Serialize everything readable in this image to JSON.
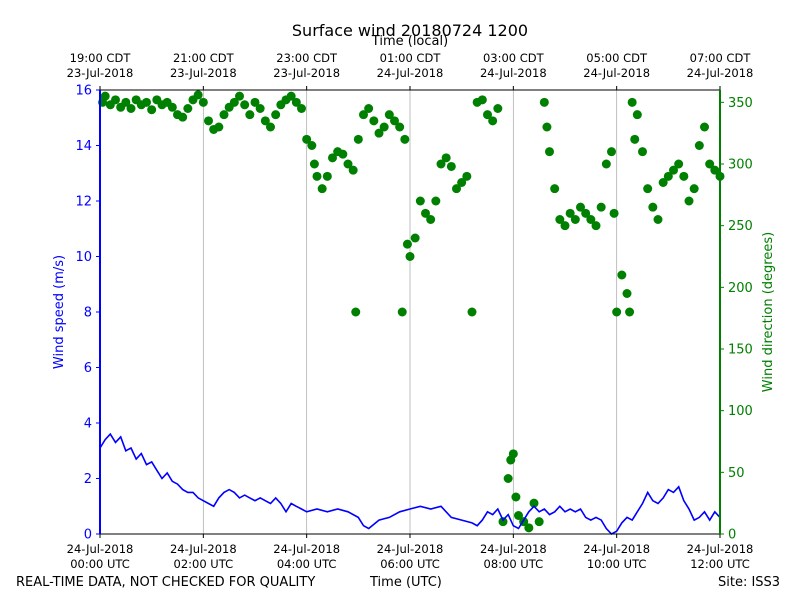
{
  "chart_data": {
    "type": "line",
    "title": "Surface wind 20180724 1200",
    "top_axis_label": "Time (local)",
    "xlabel": "Time (UTC)",
    "ylabel_left": "Wind speed (m/s)",
    "ylabel_right": "Wind direction (degrees)",
    "ylim_left": [
      0,
      16
    ],
    "ylim_right": [
      0,
      360
    ],
    "yticks_left": [
      0,
      2,
      4,
      6,
      8,
      10,
      12,
      14,
      16
    ],
    "yticks_right": [
      0,
      50,
      100,
      150,
      200,
      250,
      300,
      350
    ],
    "xlim_hours_utc": [
      0,
      12
    ],
    "grid": "vertical at every 2 h",
    "bottom_ticks": [
      {
        "hour": 0,
        "line1": "24-Jul-2018",
        "line2": "00:00 UTC"
      },
      {
        "hour": 2,
        "line1": "24-Jul-2018",
        "line2": "02:00 UTC"
      },
      {
        "hour": 4,
        "line1": "24-Jul-2018",
        "line2": "04:00 UTC"
      },
      {
        "hour": 6,
        "line1": "24-Jul-2018",
        "line2": "06:00 UTC"
      },
      {
        "hour": 8,
        "line1": "24-Jul-2018",
        "line2": "08:00 UTC"
      },
      {
        "hour": 10,
        "line1": "24-Jul-2018",
        "line2": "10:00 UTC"
      },
      {
        "hour": 12,
        "line1": "24-Jul-2018",
        "line2": "12:00 UTC"
      }
    ],
    "top_ticks": [
      {
        "hour": 0,
        "line1": "19:00 CDT",
        "line2": "23-Jul-2018"
      },
      {
        "hour": 2,
        "line1": "21:00 CDT",
        "line2": "23-Jul-2018"
      },
      {
        "hour": 4,
        "line1": "23:00 CDT",
        "line2": "23-Jul-2018"
      },
      {
        "hour": 6,
        "line1": "01:00 CDT",
        "line2": "24-Jul-2018"
      },
      {
        "hour": 8,
        "line1": "03:00 CDT",
        "line2": "24-Jul-2018"
      },
      {
        "hour": 10,
        "line1": "05:00 CDT",
        "line2": "24-Jul-2018"
      },
      {
        "hour": 12,
        "line1": "07:00 CDT",
        "line2": "24-Jul-2018"
      }
    ],
    "series": [
      {
        "name": "Wind speed (m/s)",
        "axis": "left",
        "style": "line",
        "color": "#0000ff",
        "points": [
          [
            0.0,
            3.1
          ],
          [
            0.1,
            3.4
          ],
          [
            0.2,
            3.6
          ],
          [
            0.3,
            3.3
          ],
          [
            0.4,
            3.5
          ],
          [
            0.5,
            3.0
          ],
          [
            0.6,
            3.1
          ],
          [
            0.7,
            2.7
          ],
          [
            0.8,
            2.9
          ],
          [
            0.9,
            2.5
          ],
          [
            1.0,
            2.6
          ],
          [
            1.1,
            2.3
          ],
          [
            1.2,
            2.0
          ],
          [
            1.3,
            2.2
          ],
          [
            1.4,
            1.9
          ],
          [
            1.5,
            1.8
          ],
          [
            1.6,
            1.6
          ],
          [
            1.7,
            1.5
          ],
          [
            1.8,
            1.5
          ],
          [
            1.9,
            1.3
          ],
          [
            2.0,
            1.2
          ],
          [
            2.1,
            1.1
          ],
          [
            2.2,
            1.0
          ],
          [
            2.3,
            1.3
          ],
          [
            2.4,
            1.5
          ],
          [
            2.5,
            1.6
          ],
          [
            2.6,
            1.5
          ],
          [
            2.7,
            1.3
          ],
          [
            2.8,
            1.4
          ],
          [
            2.9,
            1.3
          ],
          [
            3.0,
            1.2
          ],
          [
            3.1,
            1.3
          ],
          [
            3.2,
            1.2
          ],
          [
            3.3,
            1.1
          ],
          [
            3.4,
            1.3
          ],
          [
            3.5,
            1.1
          ],
          [
            3.6,
            0.8
          ],
          [
            3.7,
            1.1
          ],
          [
            3.8,
            1.0
          ],
          [
            3.9,
            0.9
          ],
          [
            4.0,
            0.8
          ],
          [
            4.2,
            0.9
          ],
          [
            4.4,
            0.8
          ],
          [
            4.6,
            0.9
          ],
          [
            4.8,
            0.8
          ],
          [
            5.0,
            0.6
          ],
          [
            5.1,
            0.3
          ],
          [
            5.2,
            0.2
          ],
          [
            5.4,
            0.5
          ],
          [
            5.6,
            0.6
          ],
          [
            5.8,
            0.8
          ],
          [
            6.0,
            0.9
          ],
          [
            6.2,
            1.0
          ],
          [
            6.4,
            0.9
          ],
          [
            6.6,
            1.0
          ],
          [
            6.8,
            0.6
          ],
          [
            7.0,
            0.5
          ],
          [
            7.2,
            0.4
          ],
          [
            7.3,
            0.3
          ],
          [
            7.4,
            0.5
          ],
          [
            7.5,
            0.8
          ],
          [
            7.6,
            0.7
          ],
          [
            7.7,
            0.9
          ],
          [
            7.8,
            0.5
          ],
          [
            7.9,
            0.7
          ],
          [
            8.0,
            0.3
          ],
          [
            8.1,
            0.2
          ],
          [
            8.2,
            0.5
          ],
          [
            8.3,
            0.8
          ],
          [
            8.4,
            1.0
          ],
          [
            8.5,
            0.8
          ],
          [
            8.6,
            0.9
          ],
          [
            8.7,
            0.7
          ],
          [
            8.8,
            0.8
          ],
          [
            8.9,
            1.0
          ],
          [
            9.0,
            0.8
          ],
          [
            9.1,
            0.9
          ],
          [
            9.2,
            0.8
          ],
          [
            9.3,
            0.9
          ],
          [
            9.4,
            0.6
          ],
          [
            9.5,
            0.5
          ],
          [
            9.6,
            0.6
          ],
          [
            9.7,
            0.5
          ],
          [
            9.8,
            0.2
          ],
          [
            9.9,
            0.0
          ],
          [
            10.0,
            0.1
          ],
          [
            10.1,
            0.4
          ],
          [
            10.2,
            0.6
          ],
          [
            10.3,
            0.5
          ],
          [
            10.4,
            0.8
          ],
          [
            10.5,
            1.1
          ],
          [
            10.6,
            1.5
          ],
          [
            10.7,
            1.2
          ],
          [
            10.8,
            1.1
          ],
          [
            10.9,
            1.3
          ],
          [
            11.0,
            1.6
          ],
          [
            11.1,
            1.5
          ],
          [
            11.2,
            1.7
          ],
          [
            11.3,
            1.2
          ],
          [
            11.4,
            0.9
          ],
          [
            11.5,
            0.5
          ],
          [
            11.6,
            0.6
          ],
          [
            11.7,
            0.8
          ],
          [
            11.8,
            0.5
          ],
          [
            11.9,
            0.8
          ],
          [
            12.0,
            0.6
          ]
        ]
      },
      {
        "name": "Wind direction (degrees)",
        "axis": "right",
        "style": "scatter",
        "color": "#008000",
        "points": [
          [
            0.05,
            350
          ],
          [
            0.1,
            355
          ],
          [
            0.2,
            348
          ],
          [
            0.3,
            352
          ],
          [
            0.4,
            346
          ],
          [
            0.5,
            350
          ],
          [
            0.6,
            345
          ],
          [
            0.7,
            352
          ],
          [
            0.8,
            348
          ],
          [
            0.9,
            350
          ],
          [
            1.0,
            344
          ],
          [
            1.1,
            352
          ],
          [
            1.2,
            348
          ],
          [
            1.3,
            350
          ],
          [
            1.4,
            346
          ],
          [
            1.5,
            340
          ],
          [
            1.6,
            338
          ],
          [
            1.7,
            345
          ],
          [
            1.8,
            352
          ],
          [
            1.9,
            356
          ],
          [
            2.0,
            350
          ],
          [
            2.1,
            335
          ],
          [
            2.2,
            328
          ],
          [
            2.3,
            330
          ],
          [
            2.4,
            340
          ],
          [
            2.5,
            346
          ],
          [
            2.6,
            350
          ],
          [
            2.7,
            355
          ],
          [
            2.8,
            348
          ],
          [
            2.9,
            340
          ],
          [
            3.0,
            350
          ],
          [
            3.1,
            345
          ],
          [
            3.2,
            335
          ],
          [
            3.3,
            330
          ],
          [
            3.4,
            340
          ],
          [
            3.5,
            348
          ],
          [
            3.6,
            352
          ],
          [
            3.7,
            355
          ],
          [
            3.8,
            350
          ],
          [
            3.9,
            345
          ],
          [
            4.0,
            320
          ],
          [
            4.1,
            315
          ],
          [
            4.15,
            300
          ],
          [
            4.2,
            290
          ],
          [
            4.3,
            280
          ],
          [
            4.4,
            290
          ],
          [
            4.5,
            305
          ],
          [
            4.6,
            310
          ],
          [
            4.7,
            308
          ],
          [
            4.8,
            300
          ],
          [
            4.9,
            295
          ],
          [
            4.95,
            180
          ],
          [
            5.0,
            320
          ],
          [
            5.1,
            340
          ],
          [
            5.2,
            345
          ],
          [
            5.3,
            335
          ],
          [
            5.4,
            325
          ],
          [
            5.5,
            330
          ],
          [
            5.6,
            340
          ],
          [
            5.7,
            335
          ],
          [
            5.8,
            330
          ],
          [
            5.85,
            180
          ],
          [
            5.9,
            320
          ],
          [
            5.95,
            235
          ],
          [
            6.0,
            225
          ],
          [
            6.1,
            240
          ],
          [
            6.2,
            270
          ],
          [
            6.3,
            260
          ],
          [
            6.4,
            255
          ],
          [
            6.5,
            270
          ],
          [
            6.6,
            300
          ],
          [
            6.7,
            305
          ],
          [
            6.8,
            298
          ],
          [
            6.9,
            280
          ],
          [
            7.0,
            285
          ],
          [
            7.1,
            290
          ],
          [
            7.2,
            180
          ],
          [
            7.3,
            350
          ],
          [
            7.4,
            352
          ],
          [
            7.5,
            340
          ],
          [
            7.6,
            335
          ],
          [
            7.7,
            345
          ],
          [
            7.8,
            10
          ],
          [
            7.9,
            45
          ],
          [
            7.95,
            60
          ],
          [
            8.0,
            65
          ],
          [
            8.05,
            30
          ],
          [
            8.1,
            15
          ],
          [
            8.2,
            10
          ],
          [
            8.3,
            5
          ],
          [
            8.4,
            25
          ],
          [
            8.5,
            10
          ],
          [
            8.6,
            350
          ],
          [
            8.65,
            330
          ],
          [
            8.7,
            310
          ],
          [
            8.8,
            280
          ],
          [
            8.9,
            255
          ],
          [
            9.0,
            250
          ],
          [
            9.1,
            260
          ],
          [
            9.2,
            255
          ],
          [
            9.3,
            265
          ],
          [
            9.4,
            260
          ],
          [
            9.5,
            255
          ],
          [
            9.6,
            250
          ],
          [
            9.7,
            265
          ],
          [
            9.8,
            300
          ],
          [
            9.9,
            310
          ],
          [
            9.95,
            260
          ],
          [
            10.0,
            180
          ],
          [
            10.1,
            210
          ],
          [
            10.2,
            195
          ],
          [
            10.25,
            180
          ],
          [
            10.3,
            350
          ],
          [
            10.35,
            320
          ],
          [
            10.4,
            340
          ],
          [
            10.5,
            310
          ],
          [
            10.6,
            280
          ],
          [
            10.7,
            265
          ],
          [
            10.8,
            255
          ],
          [
            10.9,
            285
          ],
          [
            11.0,
            290
          ],
          [
            11.1,
            295
          ],
          [
            11.2,
            300
          ],
          [
            11.3,
            290
          ],
          [
            11.4,
            270
          ],
          [
            11.5,
            280
          ],
          [
            11.6,
            315
          ],
          [
            11.7,
            330
          ],
          [
            11.8,
            300
          ],
          [
            11.9,
            295
          ],
          [
            12.0,
            290
          ]
        ]
      }
    ]
  },
  "header": {
    "title": "Surface wind 20180724 1200",
    "top_axis_label": "Time (local)"
  },
  "footer": {
    "left": "REAL-TIME DATA, NOT CHECKED FOR QUALITY",
    "center": "Time (UTC)",
    "right": "Site: ISS3"
  }
}
